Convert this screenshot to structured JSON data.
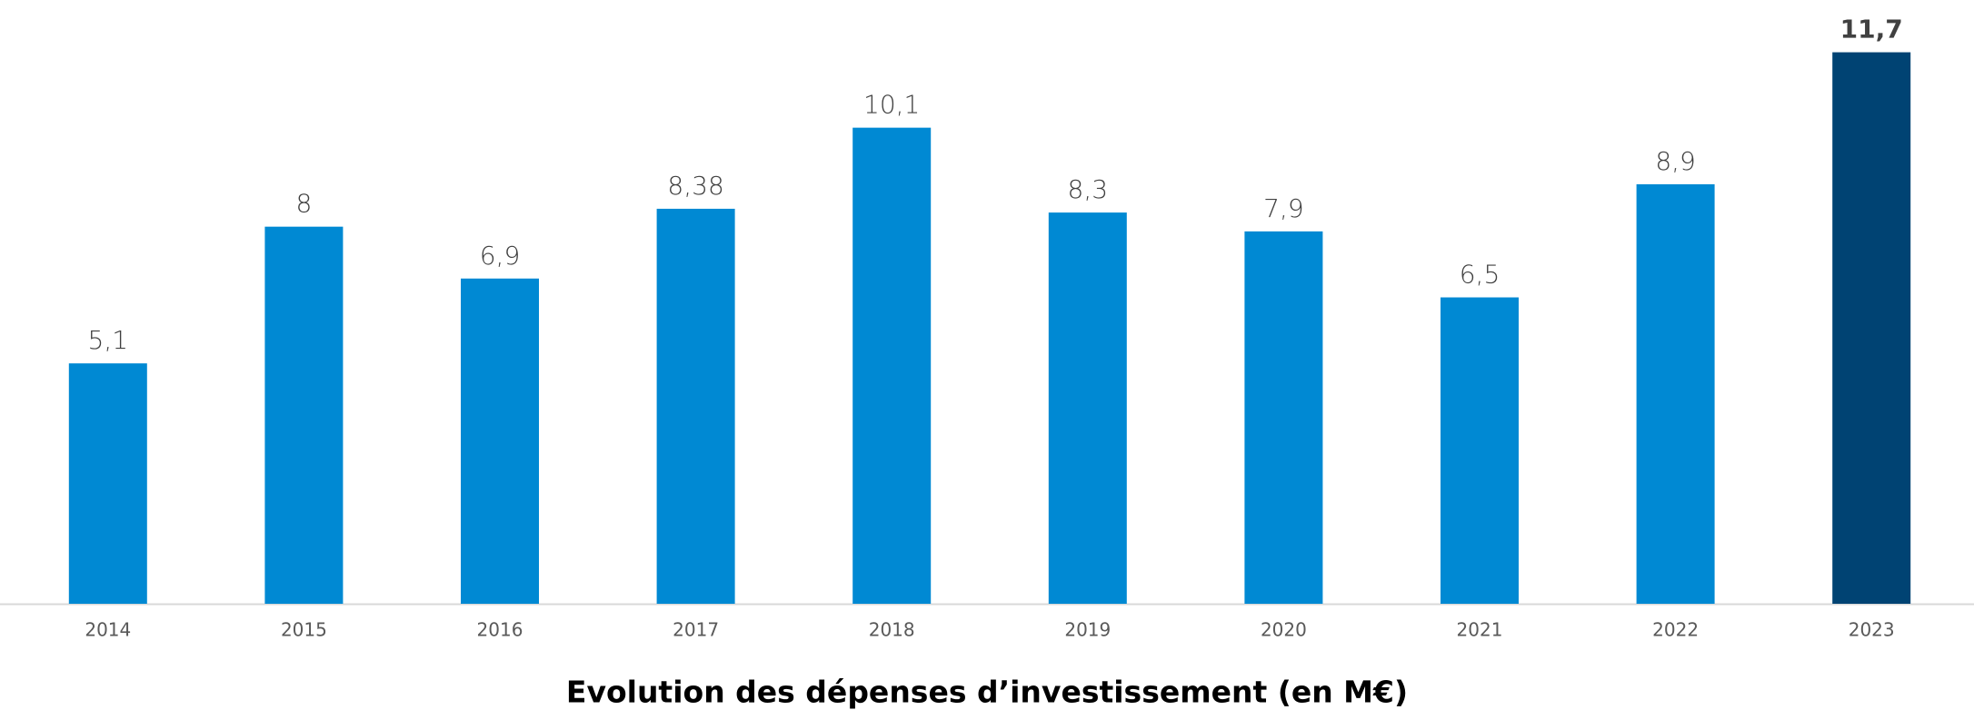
{
  "chart_data": {
    "type": "bar",
    "title": "Evolution des dépenses d’investissement (en M€)",
    "categories": [
      "2014",
      "2015",
      "2016",
      "2017",
      "2018",
      "2019",
      "2020",
      "2021",
      "2022",
      "2023"
    ],
    "values": [
      5.1,
      8,
      6.9,
      8.38,
      10.1,
      8.3,
      7.9,
      6.5,
      8.9,
      11.7
    ],
    "value_labels": [
      "5,1",
      "8",
      "6,9",
      "8,38",
      "10,1",
      "8,3",
      "7,9",
      "6,5",
      "8,9",
      "11,7"
    ],
    "colors": [
      "#0089d3",
      "#0089d3",
      "#0089d3",
      "#0089d3",
      "#0089d3",
      "#0089d3",
      "#0089d3",
      "#0089d3",
      "#0089d3",
      "#004373"
    ],
    "ylim": [
      0,
      12
    ]
  }
}
